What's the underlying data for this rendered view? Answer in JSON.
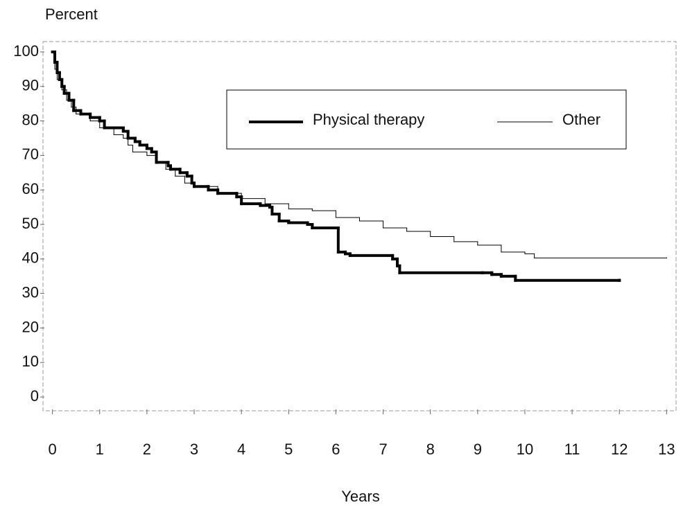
{
  "chart_data": {
    "type": "line",
    "step": "post",
    "y_label": "Percent",
    "x_label": "Years",
    "xlim": [
      -0.2,
      13.2
    ],
    "ylim": [
      -4,
      103
    ],
    "xticks": [
      0,
      1,
      2,
      3,
      4,
      5,
      6,
      7,
      8,
      9,
      10,
      11,
      12,
      13
    ],
    "yticks": [
      0,
      10,
      20,
      30,
      40,
      50,
      60,
      70,
      80,
      90,
      100
    ],
    "legend": "upper right",
    "series": [
      {
        "name": "Physical therapy",
        "color": "#000000",
        "width": 4,
        "x": [
          0,
          0.05,
          0.1,
          0.15,
          0.2,
          0.25,
          0.35,
          0.45,
          0.6,
          0.8,
          1.0,
          1.1,
          1.5,
          1.6,
          1.75,
          1.85,
          2.0,
          2.1,
          2.2,
          2.45,
          2.5,
          2.7,
          2.85,
          2.95,
          3.0,
          3.3,
          3.5,
          3.9,
          4.0,
          4.4,
          4.6,
          4.65,
          4.8,
          5.0,
          5.4,
          5.5,
          6.05,
          6.2,
          6.3,
          7.2,
          7.3,
          7.35,
          9.1,
          9.3,
          9.5,
          9.8,
          12.0
        ],
        "values": [
          100,
          97,
          94,
          92,
          90,
          88,
          86,
          83,
          82,
          81,
          80,
          78,
          77,
          75,
          74,
          73,
          72,
          71,
          68,
          67,
          66,
          65,
          64,
          62,
          61,
          60,
          59,
          58,
          56,
          55.5,
          55,
          53,
          51,
          50.5,
          50,
          49,
          42,
          41.5,
          41,
          40,
          38,
          36,
          36,
          35.5,
          35,
          33.8,
          33.8
        ]
      },
      {
        "name": "Other",
        "color": "#000000",
        "width": 1,
        "x": [
          0,
          0.05,
          0.1,
          0.2,
          0.3,
          0.4,
          0.5,
          0.8,
          1.0,
          1.3,
          1.5,
          1.6,
          1.7,
          2.0,
          2.2,
          2.4,
          2.6,
          2.8,
          3.0,
          3.5,
          4.0,
          4.5,
          5.0,
          5.5,
          6.0,
          6.5,
          7.0,
          7.5,
          8.0,
          8.5,
          9.0,
          9.5,
          10.0,
          10.2,
          13.0
        ],
        "values": [
          100,
          95,
          92,
          89,
          86,
          84,
          82,
          80,
          78,
          76,
          75,
          73,
          71,
          70,
          68,
          66,
          64,
          62,
          61,
          59,
          57.5,
          56,
          54.5,
          54,
          52,
          51,
          49,
          48,
          46.5,
          45,
          44,
          42,
          41.5,
          40.3,
          40.3
        ]
      }
    ]
  }
}
